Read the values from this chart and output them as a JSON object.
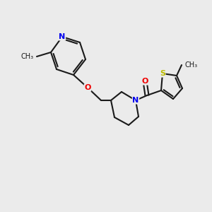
{
  "background_color": "#ebebeb",
  "figure_size": [
    3.0,
    3.0
  ],
  "dpi": 100,
  "bond_color": "#1a1a1a",
  "bond_width": 1.5,
  "atom_colors": {
    "N": "#0000ee",
    "O": "#ee0000",
    "S": "#bbbb00",
    "C": "#1a1a1a"
  },
  "font_size": 7.5,
  "font_size_methyl": 7.0
}
